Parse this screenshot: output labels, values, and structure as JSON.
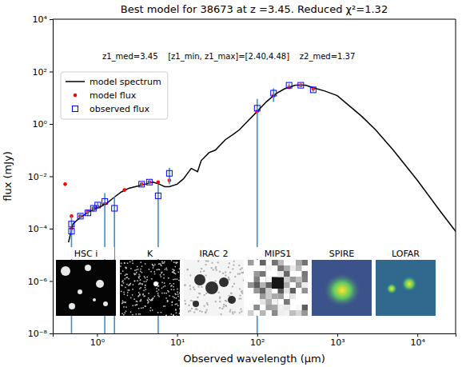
{
  "chart_data": {
    "type": "line",
    "title": "Best model for 38673 at z =3.45. Reduced χ²=1.32",
    "annotation": "z1_med=3.45    [z1_min, z1_max]=[2.40,4.48]    z2_med=1.37",
    "x_label": "Observed wavelength (μm)",
    "y_label": "flux (mJy)",
    "log": true,
    "grid": false,
    "legend": "upper left",
    "xlim": [
      0.28,
      30000
    ],
    "ylim": [
      1e-08,
      10000
    ],
    "xticks": [
      {
        "value": 1,
        "label": "10⁰"
      },
      {
        "value": 10,
        "label": "10¹"
      },
      {
        "value": 100,
        "label": "10²"
      },
      {
        "value": 1000,
        "label": "10³"
      },
      {
        "value": 10000,
        "label": "10⁴"
      }
    ],
    "yticks": [
      {
        "value": 1e-08,
        "label": "10⁻⁸"
      },
      {
        "value": 1e-06,
        "label": "10⁻⁶"
      },
      {
        "value": 0.0001,
        "label": "10⁻⁴"
      },
      {
        "value": 0.01,
        "label": "10⁻²"
      },
      {
        "value": 1,
        "label": "10⁰"
      },
      {
        "value": 100,
        "label": "10²"
      },
      {
        "value": 10000,
        "label": "10⁴"
      }
    ],
    "cutout_labels": [
      "HSC i",
      "K",
      "IRAC 2",
      "MIPS1",
      "SPIRE",
      "LOFAR"
    ],
    "series": [
      {
        "name": "model spectrum",
        "type": "line",
        "color": "#000000",
        "line_style": "solid",
        "x": [
          0.44,
          0.5,
          0.6,
          0.8,
          1.0,
          1.3,
          1.6,
          2,
          2.5,
          3,
          4,
          5,
          6,
          7,
          8,
          10,
          12,
          15,
          18,
          20,
          25,
          30,
          40,
          50,
          60,
          80,
          100,
          130,
          170,
          220,
          300,
          400,
          500,
          700,
          1000,
          2000,
          3000,
          5000,
          10000,
          20000,
          30000
        ],
        "values": [
          3e-05,
          0.00015,
          0.00025,
          0.00045,
          0.0006,
          0.0009,
          0.0015,
          0.0025,
          0.0035,
          0.004,
          0.005,
          0.006,
          0.005,
          0.004,
          0.004,
          0.005,
          0.008,
          0.02,
          0.015,
          0.04,
          0.08,
          0.1,
          0.25,
          0.4,
          0.6,
          1.5,
          3,
          7,
          14,
          22,
          30,
          30,
          24,
          18,
          12,
          2,
          0.6,
          0.1,
          0.007,
          0.0004,
          8e-05
        ]
      },
      {
        "name": "model flux",
        "type": "scatter",
        "color": "#ff0000",
        "marker": "circle",
        "x": [
          0.4,
          0.48,
          0.48,
          0.62,
          0.77,
          0.9,
          1.02,
          1.25,
          2.2,
          3.6,
          4.5,
          5.8,
          8.0,
          100,
          160,
          250,
          350,
          500
        ],
        "values": [
          0.005,
          0.0001,
          0.0003,
          0.0003,
          0.00045,
          0.0006,
          0.0007,
          0.0009,
          0.003,
          0.005,
          0.006,
          0.006,
          0.007,
          3,
          12,
          25,
          30,
          22
        ]
      },
      {
        "name": "observed flux",
        "type": "scatter",
        "color": "#0000ff",
        "marker": "square",
        "x": [
          0.48,
          0.48,
          0.62,
          0.77,
          0.9,
          1.02,
          1.25,
          1.65,
          3.6,
          4.5,
          5.8,
          8.0,
          100,
          160,
          250,
          350,
          500
        ],
        "values": [
          0.00015,
          8e-05,
          0.0003,
          0.0004,
          0.0006,
          0.0008,
          0.0011,
          0.0006,
          0.005,
          0.006,
          0.0018,
          0.013,
          4,
          15,
          30,
          30,
          20
        ],
        "errors": [
          0.00015,
          2e-05,
          5e-05,
          0.0001,
          0.00015,
          0.0002,
          0.0012,
          0.0011,
          0.0008,
          0.001,
          0.003,
          0.008,
          5,
          8,
          5,
          4,
          3
        ]
      }
    ]
  }
}
